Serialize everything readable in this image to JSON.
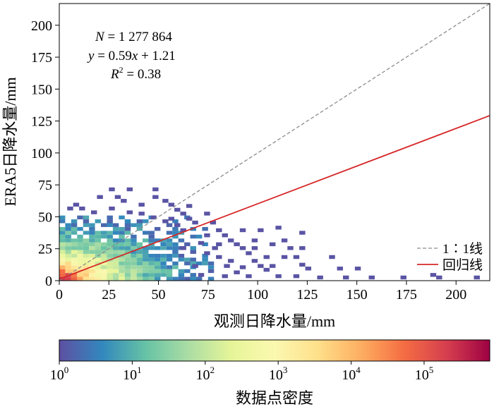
{
  "chart_data": {
    "type": "heatmap",
    "subtype": "2d-density-scatter",
    "xlabel": "观测日降水量/mm",
    "ylabel": "ERA5日降水量/mm",
    "xlim": [
      0,
      217
    ],
    "ylim": [
      0,
      217
    ],
    "xticks": [
      "0",
      "25",
      "50",
      "75",
      "100",
      "125",
      "150",
      "175",
      "200"
    ],
    "yticks": [
      "0",
      "25",
      "50",
      "75",
      "100",
      "125",
      "150",
      "175",
      "200"
    ],
    "grid": false,
    "annotation": {
      "n_prefix": "N",
      "n_value": " = 1 277 864",
      "y_prefix": "y",
      "eq_mid": " = 0.59",
      "x_var": "x",
      "eq_tail": " + 1.21",
      "r_prefix": "R",
      "r_sup": "2",
      "r_value": " = 0.38"
    },
    "lines": [
      {
        "name": "1∶1线",
        "slope": 1,
        "intercept": 0,
        "color": "#8c8c8c",
        "style": "dashed"
      },
      {
        "name": "回归线",
        "slope": 0.59,
        "intercept": 1.21,
        "color": "#d62728",
        "style": "solid"
      }
    ],
    "legend_position": "lower-right",
    "colorbar": {
      "label": "数据点密度",
      "scale": "log",
      "tick_base": "10",
      "tick_exponents": [
        "0",
        "1",
        "2",
        "3",
        "4",
        "5"
      ],
      "min_exponent": 0,
      "max_exponent": 5.9,
      "colormap": "Spectral_r",
      "colors": [
        "#5e4fa2",
        "#3288bd",
        "#66c2a5",
        "#abdda4",
        "#e6f598",
        "#fbf8b0",
        "#fee08b",
        "#fdae61",
        "#f46d43",
        "#d53e4f",
        "#9e0142"
      ]
    },
    "density_model": {
      "bin_width": 3,
      "log_peak": 5.8,
      "decay_x": 42,
      "decay_y": 30,
      "dense_x_max": 78,
      "dense_y_max": 50
    },
    "sparse_points": [
      [
        25,
        70
      ],
      [
        34,
        70
      ],
      [
        47,
        70
      ],
      [
        19,
        64
      ],
      [
        28,
        64
      ],
      [
        47,
        64
      ],
      [
        31,
        61
      ],
      [
        52,
        61
      ],
      [
        40,
        58
      ],
      [
        55,
        58
      ],
      [
        64,
        57
      ],
      [
        58,
        54
      ],
      [
        61,
        51
      ],
      [
        55,
        47
      ],
      [
        64,
        47
      ],
      [
        73,
        51
      ],
      [
        67,
        44
      ],
      [
        76,
        44
      ],
      [
        79,
        38
      ],
      [
        73,
        34
      ],
      [
        82,
        34
      ],
      [
        85,
        30
      ],
      [
        79,
        27
      ],
      [
        88,
        27
      ],
      [
        91,
        24
      ],
      [
        94,
        20
      ],
      [
        73,
        20
      ],
      [
        79,
        17
      ],
      [
        85,
        14
      ],
      [
        97,
        14
      ],
      [
        100,
        10
      ],
      [
        106,
        10
      ],
      [
        103,
        7
      ],
      [
        91,
        9
      ],
      [
        88,
        5
      ],
      [
        82,
        2
      ],
      [
        70,
        3
      ],
      [
        94,
        2
      ],
      [
        118,
        2
      ],
      [
        130,
        1
      ],
      [
        143,
        1
      ],
      [
        156,
        1
      ],
      [
        172,
        1
      ],
      [
        190,
        1
      ],
      [
        209,
        1
      ],
      [
        187,
        3
      ],
      [
        77,
        24
      ],
      [
        70,
        28
      ],
      [
        61,
        38
      ],
      [
        58,
        42
      ],
      [
        52,
        45
      ],
      [
        46,
        48
      ],
      [
        40,
        51
      ],
      [
        34,
        52
      ],
      [
        25,
        55
      ],
      [
        16,
        52
      ],
      [
        10,
        55
      ],
      [
        4,
        55
      ],
      [
        7,
        58
      ],
      [
        112,
        30
      ],
      [
        115,
        24
      ],
      [
        121,
        24
      ],
      [
        118,
        17
      ],
      [
        121,
        36
      ],
      [
        100,
        38
      ],
      [
        109,
        40
      ],
      [
        97,
        24
      ],
      [
        103,
        17
      ],
      [
        112,
        17
      ],
      [
        124,
        8
      ],
      [
        140,
        8
      ],
      [
        149,
        8
      ],
      [
        109,
        2
      ],
      [
        121,
        11
      ],
      [
        136,
        17
      ],
      [
        67,
        10
      ],
      [
        61,
        24
      ],
      [
        83,
        10
      ],
      [
        91,
        38
      ],
      [
        97,
        30
      ],
      [
        106,
        27
      ]
    ]
  }
}
